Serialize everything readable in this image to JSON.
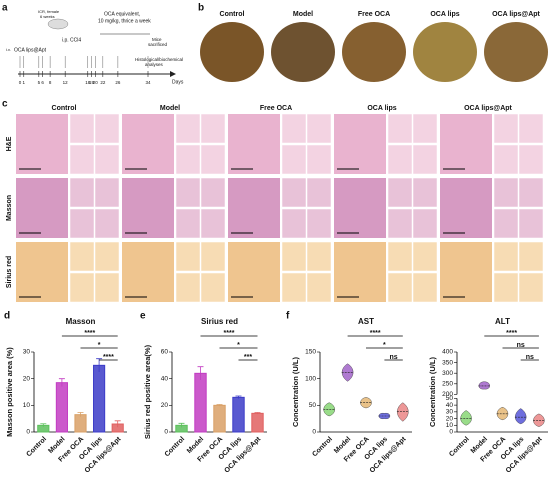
{
  "panel_labels": [
    "a",
    "b",
    "c",
    "d",
    "e",
    "f"
  ],
  "timeline": {
    "mouse": "ICR, female",
    "age": "6 weeks",
    "iv": "i.v.",
    "iv_drug": "OCA lips@Apt",
    "ip": "i.p. CCl4",
    "dose1": "OCA equivalent,",
    "dose2": "10 mg/kg, thrice a week",
    "end1": "Mice",
    "end2": "sacrificed",
    "end3": "Histological/biochemical",
    "end4": "analyses",
    "axis": "Days",
    "days": [
      0,
      1,
      5,
      6,
      8,
      12,
      18,
      19,
      20,
      22,
      26,
      34
    ]
  },
  "groups": [
    "Control",
    "Model",
    "Free OCA",
    "OCA lips",
    "OCA lips@Apt"
  ],
  "stains": [
    "H&E",
    "Masson",
    "Sirius red"
  ],
  "chart_data": [
    {
      "type": "bar",
      "title": "Masson",
      "y_label": "Masson positive area (%)",
      "categories": [
        "Control",
        "Model",
        "Free OCA",
        "OCA lips",
        "OCA lips@Apt"
      ],
      "values": [
        2.5,
        18.5,
        6.5,
        25,
        3
      ],
      "errors": [
        0.6,
        1.5,
        0.8,
        2.5,
        1.2
      ],
      "colors": [
        "#5cc05c",
        "#c23cc2",
        "#d9a066",
        "#3c3cc8",
        "#e06060"
      ],
      "ylim": [
        0,
        30
      ],
      "yticks": [
        0,
        10,
        20,
        30
      ],
      "significance": [
        "****",
        "*",
        "****"
      ]
    },
    {
      "type": "bar",
      "title": "Sirius red",
      "y_label": "Sirius red positive area(%)",
      "categories": [
        "Control",
        "Model",
        "Free OCA",
        "OCA lips",
        "OCA lips@Apt"
      ],
      "values": [
        5,
        44,
        20,
        26,
        14
      ],
      "errors": [
        1.5,
        5,
        0.6,
        1,
        0.6
      ],
      "colors": [
        "#5cc05c",
        "#c23cc2",
        "#d9a066",
        "#3c3cc8",
        "#e06060"
      ],
      "ylim": [
        0,
        60
      ],
      "yticks": [
        0,
        20,
        40,
        60
      ],
      "significance": [
        "****",
        "*",
        "***"
      ]
    },
    {
      "type": "violin",
      "title": "AST",
      "y_label": "Concentration (U/L)",
      "categories": [
        "Control",
        "Model",
        "Free OCA",
        "OCA lips",
        "OCA lips@Apt"
      ],
      "values": [
        42,
        112,
        55,
        30,
        38
      ],
      "mins": [
        30,
        95,
        45,
        25,
        20
      ],
      "maxs": [
        55,
        128,
        65,
        35,
        55
      ],
      "colors": [
        "#7fd36b",
        "#9b59c6",
        "#e3b36b",
        "#4a4ad6",
        "#e87d7d"
      ],
      "ylim": [
        0,
        150
      ],
      "yticks": [
        0,
        50,
        100,
        150
      ],
      "significance": [
        "****",
        "*",
        "ns"
      ]
    },
    {
      "type": "violin",
      "title": "ALT",
      "y_label": "Concentration (U/L)",
      "categories": [
        "Control",
        "Model",
        "Free OCA",
        "OCA lips",
        "OCA lips@Apt"
      ],
      "values": [
        20,
        240,
        27,
        22,
        17
      ],
      "mins": [
        10,
        225,
        18,
        12,
        8
      ],
      "maxs": [
        32,
        260,
        37,
        35,
        27
      ],
      "colors": [
        "#7fd36b",
        "#9b59c6",
        "#e3b36b",
        "#4a4ad6",
        "#e87d7d"
      ],
      "ylim": [
        0,
        400
      ],
      "ybreak": [
        50,
        200
      ],
      "yticks": [
        0,
        10,
        20,
        30,
        40,
        50,
        200,
        250,
        300,
        350,
        400
      ],
      "significance": [
        "****",
        "ns",
        "ns"
      ]
    }
  ]
}
